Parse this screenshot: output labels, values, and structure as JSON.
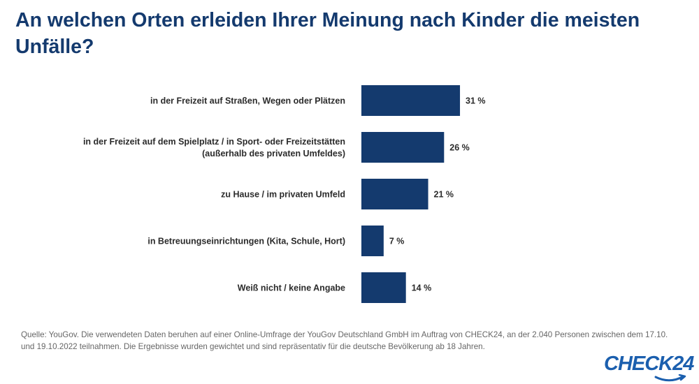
{
  "title": "An welchen Orten erleiden Ihrer Meinung nach Kinder die meisten Unfälle?",
  "source": "Quelle: YouGov. Die verwendeten Daten beruhen auf einer Online-Umfrage der YouGov Deutschland GmbH im Auftrag von CHECK24, an der 2.040 Personen zwischen dem 17.10. und 19.10.2022 teilnahmen. Die Ergebnisse wurden gewichtet und sind repräsentativ für die deutsche Bevölkerung ab 18 Jahren.",
  "logo": "CHECK24",
  "colors": {
    "bar": "#143a6e",
    "title": "#143a6e",
    "logo": "#1b5fae"
  },
  "chart_data": {
    "type": "bar",
    "orientation": "horizontal",
    "categories": [
      [
        "in der Freizeit auf Straßen, Wegen oder Plätzen"
      ],
      [
        "in der Freizeit auf dem Spielplatz / in Sport- oder Freizeitstätten",
        "(außerhalb des privaten Umfeldes)"
      ],
      [
        "zu Hause / im privaten Umfeld"
      ],
      [
        "in Betreuungseinrichtungen (Kita, Schule, Hort)"
      ],
      [
        "Weiß nicht / keine Angabe"
      ]
    ],
    "values": [
      31,
      26,
      21,
      7,
      14
    ],
    "value_labels": [
      "31 %",
      "26 %",
      "21 %",
      "7 %",
      "14 %"
    ],
    "unit": "%",
    "grid": false,
    "legend": "none"
  }
}
